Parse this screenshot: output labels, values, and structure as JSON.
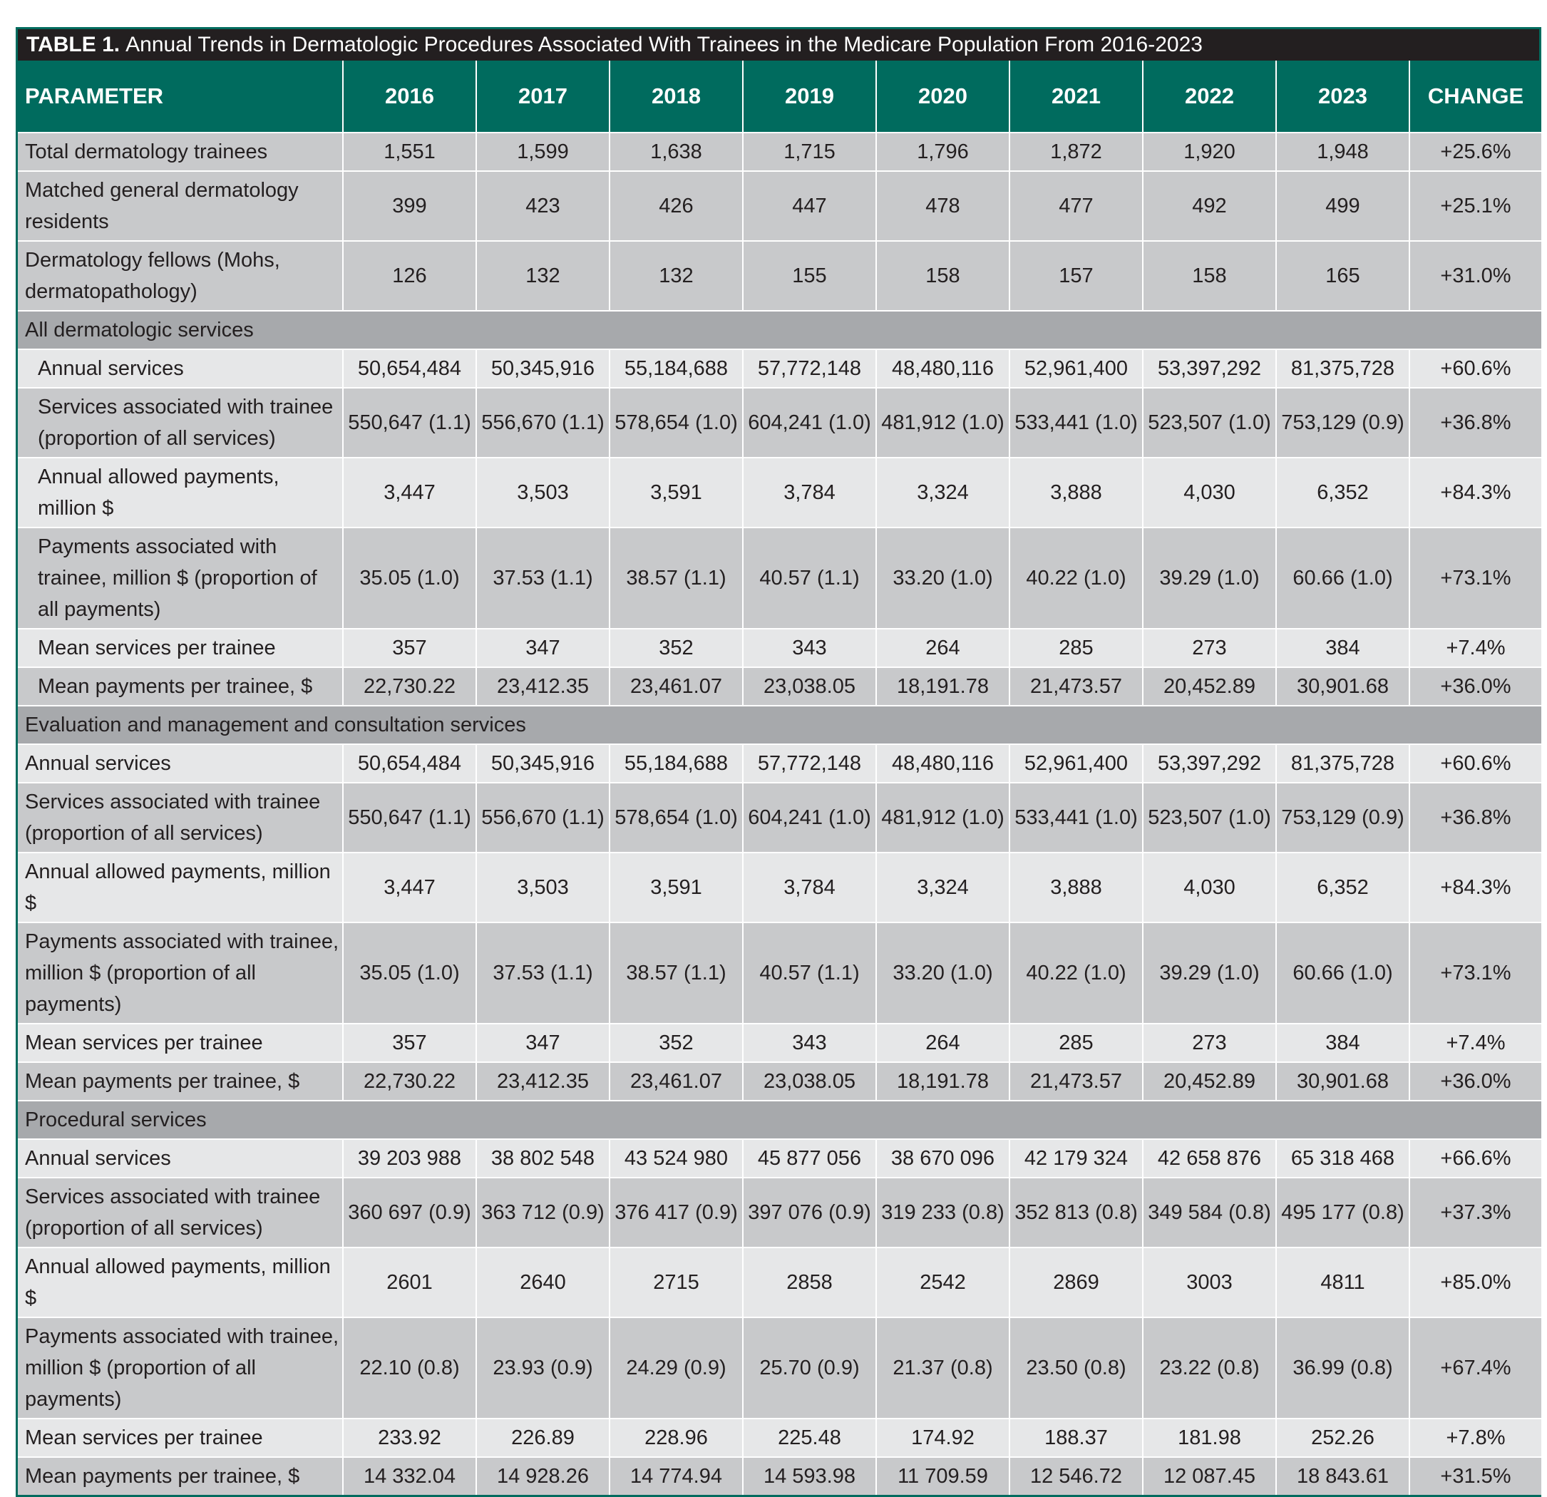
{
  "title": {
    "label": "TABLE 1.",
    "text": "Annual Trends in Dermatologic Procedures Associated With Trainees in the Medicare Population From 2016-2023"
  },
  "header": [
    "PARAMETER",
    "2016",
    "2017",
    "2018",
    "2019",
    "2020",
    "2021",
    "2022",
    "2023",
    "CHANGE"
  ],
  "top_rows": [
    {
      "label": "Total dermatology trainees",
      "values": [
        "1,551",
        "1,599",
        "1,638",
        "1,715",
        "1,796",
        "1,872",
        "1,920",
        "1,948",
        "+25.6%"
      ]
    },
    {
      "label": "Matched general dermatology residents",
      "values": [
        "399",
        "423",
        "426",
        "447",
        "478",
        "477",
        "492",
        "499",
        "+25.1%"
      ]
    },
    {
      "label": "Dermatology fellows (Mohs, dermatopathology)",
      "values": [
        "126",
        "132",
        "132",
        "155",
        "158",
        "157",
        "158",
        "165",
        "+31.0%"
      ]
    }
  ],
  "sections": [
    {
      "name": "All dermatologic services",
      "rows": [
        {
          "label": "Annual services",
          "values": [
            "50,654,484",
            "50,345,916",
            "55,184,688",
            "57,772,148",
            "48,480,116",
            "52,961,400",
            "53,397,292",
            "81,375,728",
            "+60.6%"
          ]
        },
        {
          "label": "Services associated with trainee (proportion of all services)",
          "values": [
            "550,647 (1.1)",
            "556,670 (1.1)",
            "578,654 (1.0)",
            "604,241 (1.0)",
            "481,912 (1.0)",
            "533,441 (1.0)",
            "523,507 (1.0)",
            "753,129 (0.9)",
            "+36.8%"
          ]
        },
        {
          "label": "Annual allowed payments, million $",
          "values": [
            "3,447",
            "3,503",
            "3,591",
            "3,784",
            "3,324",
            "3,888",
            "4,030",
            "6,352",
            "+84.3%"
          ]
        },
        {
          "label": "Payments associated with trainee, million $ (proportion of all payments)",
          "values": [
            "35.05 (1.0)",
            "37.53 (1.1)",
            "38.57 (1.1)",
            "40.57 (1.1)",
            "33.20 (1.0)",
            "40.22 (1.0)",
            "39.29 (1.0)",
            "60.66 (1.0)",
            "+73.1%"
          ]
        },
        {
          "label": "Mean services per trainee",
          "values": [
            "357",
            "347",
            "352",
            "343",
            "264",
            "285",
            "273",
            "384",
            "+7.4%"
          ]
        },
        {
          "label": "Mean payments per trainee, $",
          "values": [
            "22,730.22",
            "23,412.35",
            "23,461.07",
            "23,038.05",
            "18,191.78",
            "21,473.57",
            "20,452.89",
            "30,901.68",
            "+36.0%"
          ]
        }
      ]
    },
    {
      "name": "Evaluation and management and consultation services",
      "rows": [
        {
          "label": "Annual services",
          "values": [
            "50,654,484",
            "50,345,916",
            "55,184,688",
            "57,772,148",
            "48,480,116",
            "52,961,400",
            "53,397,292",
            "81,375,728",
            "+60.6%"
          ]
        },
        {
          "label": "Services associated with trainee (proportion of all services)",
          "values": [
            "550,647 (1.1)",
            "556,670 (1.1)",
            "578,654 (1.0)",
            "604,241 (1.0)",
            "481,912 (1.0)",
            "533,441 (1.0)",
            "523,507 (1.0)",
            "753,129 (0.9)",
            "+36.8%"
          ]
        },
        {
          "label": "Annual allowed payments, million $",
          "values": [
            "3,447",
            "3,503",
            "3,591",
            "3,784",
            "3,324",
            "3,888",
            "4,030",
            "6,352",
            "+84.3%"
          ]
        },
        {
          "label": "Payments associated with trainee, million $ (proportion of all payments)",
          "values": [
            "35.05 (1.0)",
            "37.53 (1.1)",
            "38.57 (1.1)",
            "40.57 (1.1)",
            "33.20 (1.0)",
            "40.22 (1.0)",
            "39.29 (1.0)",
            "60.66 (1.0)",
            "+73.1%"
          ]
        },
        {
          "label": "Mean services per trainee",
          "values": [
            "357",
            "347",
            "352",
            "343",
            "264",
            "285",
            "273",
            "384",
            "+7.4%"
          ]
        },
        {
          "label": "Mean payments per trainee, $",
          "values": [
            "22,730.22",
            "23,412.35",
            "23,461.07",
            "23,038.05",
            "18,191.78",
            "21,473.57",
            "20,452.89",
            "30,901.68",
            "+36.0%"
          ]
        }
      ]
    },
    {
      "name": "Procedural services",
      "rows": [
        {
          "label": "Annual services",
          "values": [
            "39 203 988",
            "38 802 548",
            "43 524 980",
            "45 877 056",
            "38 670 096",
            "42 179 324",
            "42 658 876",
            "65 318 468",
            "+66.6%"
          ]
        },
        {
          "label": "Services associated with trainee (proportion of all services)",
          "values": [
            "360 697 (0.9)",
            "363 712 (0.9)",
            "376 417 (0.9)",
            "397 076 (0.9)",
            "319 233 (0.8)",
            "352 813 (0.8)",
            "349 584 (0.8)",
            "495 177 (0.8)",
            "+37.3%"
          ]
        },
        {
          "label": "Annual allowed payments, million $",
          "values": [
            "2601",
            "2640",
            "2715",
            "2858",
            "2542",
            "2869",
            "3003",
            "4811",
            "+85.0%"
          ]
        },
        {
          "label": "Payments associated with trainee, million $ (proportion of all payments)",
          "values": [
            "22.10 (0.8)",
            "23.93 (0.9)",
            "24.29 (0.9)",
            "25.70 (0.9)",
            "21.37 (0.8)",
            "23.50 (0.8)",
            "23.22 (0.8)",
            "36.99 (0.8)",
            "+67.4%"
          ]
        },
        {
          "label": "Mean services per trainee",
          "values": [
            "233.92",
            "226.89",
            "228.96",
            "225.48",
            "174.92",
            "188.37",
            "181.98",
            "252.26",
            "+7.8%"
          ]
        },
        {
          "label": "Mean payments per trainee, $",
          "values": [
            "14 332.04",
            "14 928.26",
            "14 774.94",
            "14 593.98",
            "11 709.59",
            "12 546.72",
            "12 087.45",
            "18 843.61",
            "+31.5%"
          ]
        }
      ]
    }
  ],
  "colors": {
    "header_bg": "#006b5e",
    "title_bg": "#231f20",
    "row_dark": "#c8c9cb",
    "row_light": "#e6e7e8",
    "section_bg": "#a7a9ac"
  }
}
